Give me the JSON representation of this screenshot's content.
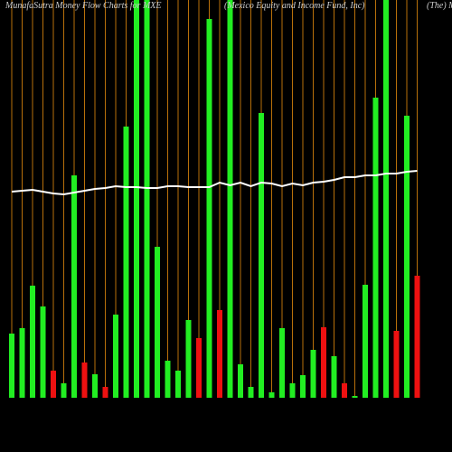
{
  "chart_data": {
    "type": "bar",
    "title": "MunafaSutra  Money Flow Charts for MXE",
    "subtitle": "(Mexico  Equity and Income  Fund,  Inc)",
    "note": "(The) M",
    "values": [
      71,
      77,
      124,
      101,
      30,
      16,
      246,
      39,
      26,
      12,
      92,
      300,
      460,
      460,
      167,
      41,
      30,
      86,
      66,
      419,
      97,
      460,
      37,
      12,
      315,
      6,
      77,
      16,
      25,
      53,
      78,
      46,
      16,
      2,
      125,
      332,
      460,
      74,
      312,
      135
    ],
    "colors": [
      "#22ee22",
      "#22ee22",
      "#22ee22",
      "#22ee22",
      "#ee1111",
      "#22ee22",
      "#22ee22",
      "#ee1111",
      "#22ee22",
      "#ee1111",
      "#22ee22",
      "#22ee22",
      "#22ee22",
      "#22ee22",
      "#22ee22",
      "#22ee22",
      "#22ee22",
      "#22ee22",
      "#ee1111",
      "#22ee22",
      "#ee1111",
      "#22ee22",
      "#22ee22",
      "#22ee22",
      "#22ee22",
      "#22ee22",
      "#22ee22",
      "#22ee22",
      "#22ee22",
      "#22ee22",
      "#ee1111",
      "#22ee22",
      "#ee1111",
      "#22ee22",
      "#22ee22",
      "#22ee22",
      "#22ee22",
      "#ee1111",
      "#22ee22",
      "#ee1111"
    ],
    "line": {
      "color": "#ffffff",
      "values": [
        228,
        229,
        230,
        228,
        226,
        225,
        227,
        229,
        231,
        232,
        234,
        233,
        233,
        232,
        232,
        234,
        234,
        233,
        233,
        233,
        238,
        235,
        238,
        234,
        238,
        237,
        234,
        237,
        235,
        238,
        239,
        241,
        244,
        244,
        246,
        246,
        248,
        248,
        250,
        251
      ]
    },
    "ylim": [
      0,
      440
    ],
    "grid_color": "#b8700a"
  }
}
